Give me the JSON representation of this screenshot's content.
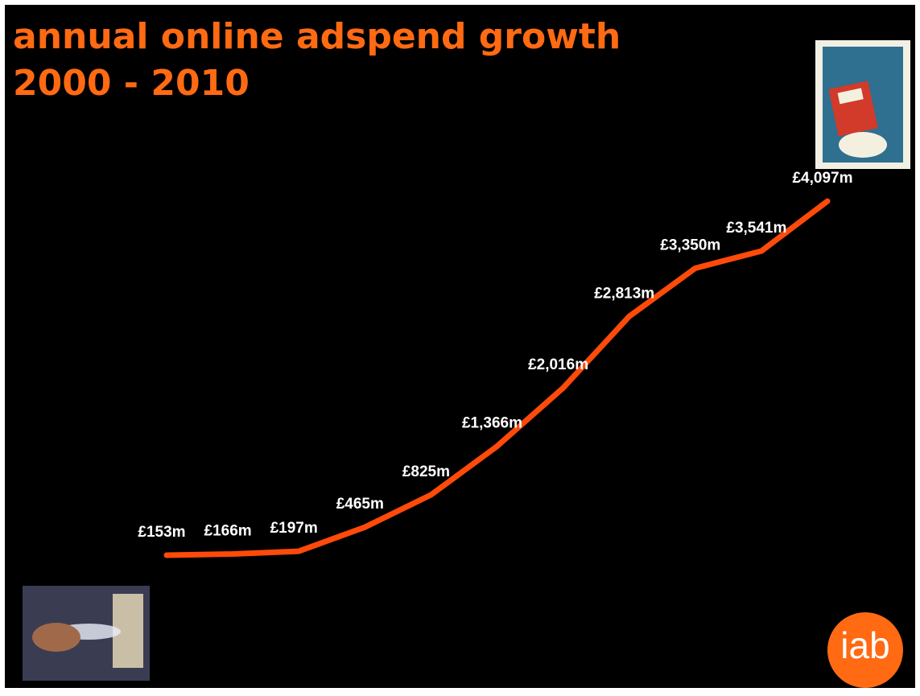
{
  "chart_data": {
    "type": "line",
    "title_lines": [
      "annual online adspend growth",
      "2000 - 2010"
    ],
    "values": [
      153,
      166,
      197,
      465,
      825,
      1366,
      2016,
      2813,
      3350,
      3541,
      4097
    ],
    "value_labels": [
      "£153m",
      "£166m",
      "£197m",
      "£465m",
      "£825m",
      "£1,366m",
      "£2,016m",
      "£2,813m",
      "£3,350m",
      "£3,541m",
      "£4,097m"
    ],
    "color": "#ff4a0a"
  },
  "logo": {
    "text": "iab",
    "color": "#ff6a13"
  }
}
